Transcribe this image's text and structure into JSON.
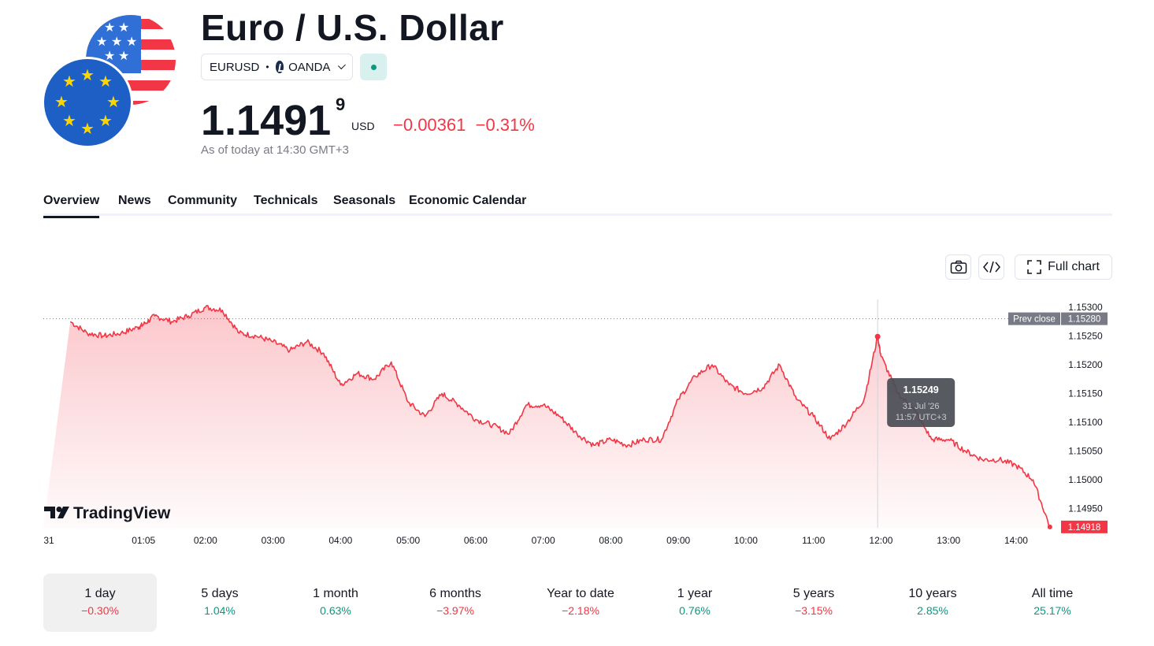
{
  "header": {
    "title": "Euro / U.S. Dollar",
    "symbol": "EURUSD",
    "separator": "•",
    "exchange": "OANDA",
    "price_main": "1.1491",
    "price_last_digit": "9",
    "currency": "USD",
    "change": "−0.00361",
    "change_pct": "−0.31%",
    "as_of": "As of today at 14:30 GMT+3",
    "colors": {
      "negative": "#f23645",
      "positive": "#089981",
      "market_status": "#089981"
    }
  },
  "tabs": [
    {
      "label": "Overview",
      "active": true
    },
    {
      "label": "News"
    },
    {
      "label": "Community"
    },
    {
      "label": "Technicals"
    },
    {
      "label": "Seasonals"
    },
    {
      "label": "Economic Calendar"
    }
  ],
  "toolbar": {
    "snapshot_icon": "camera-icon",
    "embed_icon": "code-icon",
    "full_chart_icon": "expand-icon",
    "full_chart_label": "Full chart"
  },
  "chart_data": {
    "type": "area",
    "line_color": "#f23645",
    "x_tick_labels": [
      "31",
      "01:05",
      "02:00",
      "03:00",
      "04:00",
      "05:00",
      "06:00",
      "07:00",
      "08:00",
      "09:00",
      "10:00",
      "11:00",
      "12:00",
      "13:00",
      "14:00"
    ],
    "y_tick_labels": [
      "1.15300",
      "1.15250",
      "1.15200",
      "1.15150",
      "1.15100",
      "1.15050",
      "1.15000",
      "1.14950"
    ],
    "ylim": [
      1.1491,
      1.1532
    ],
    "prev_close": {
      "label": "Prev close",
      "value": 1.1528,
      "value_label": "1.15280"
    },
    "last_price": {
      "value": 1.14918,
      "value_label": "1.14918"
    },
    "tooltip": {
      "price": "1.15249",
      "date": "31 Jul '26",
      "time": "11:57 UTC+3",
      "x": "11:57",
      "y": 1.15249
    },
    "x": [
      "00:00",
      "00:15",
      "00:30",
      "00:45",
      "01:00",
      "01:05",
      "01:15",
      "01:30",
      "01:45",
      "02:00",
      "02:15",
      "02:30",
      "02:45",
      "03:00",
      "03:15",
      "03:30",
      "03:45",
      "04:00",
      "04:15",
      "04:30",
      "04:45",
      "05:00",
      "05:15",
      "05:30",
      "05:45",
      "06:00",
      "06:15",
      "06:30",
      "06:45",
      "07:00",
      "07:15",
      "07:30",
      "07:45",
      "08:00",
      "08:15",
      "08:30",
      "08:45",
      "09:00",
      "09:15",
      "09:30",
      "09:45",
      "10:00",
      "10:15",
      "10:30",
      "10:45",
      "11:00",
      "11:15",
      "11:30",
      "11:45",
      "11:57",
      "12:00",
      "12:15",
      "12:30",
      "12:45",
      "13:00",
      "13:15",
      "13:30",
      "13:45",
      "14:00",
      "14:15",
      "14:30"
    ],
    "values": [
      1.15275,
      1.15255,
      1.1525,
      1.15255,
      1.15265,
      1.1527,
      1.15285,
      1.15275,
      1.15285,
      1.153,
      1.15295,
      1.15255,
      1.1525,
      1.1524,
      1.15225,
      1.1524,
      1.1522,
      1.15165,
      1.15185,
      1.15175,
      1.15205,
      1.15135,
      1.1511,
      1.1515,
      1.1513,
      1.15105,
      1.15095,
      1.1508,
      1.1513,
      1.1513,
      1.1511,
      1.1508,
      1.1506,
      1.1507,
      1.1506,
      1.1507,
      1.1507,
      1.1514,
      1.1518,
      1.152,
      1.15165,
      1.1515,
      1.1516,
      1.152,
      1.1514,
      1.1511,
      1.1507,
      1.151,
      1.1514,
      1.15249,
      1.15215,
      1.1515,
      1.1512,
      1.1507,
      1.1507,
      1.1505,
      1.15035,
      1.15035,
      1.15025,
      1.15,
      1.14918
    ]
  },
  "watermark": {
    "text": "TradingView",
    "logo_icon": "tradingview-logo-icon"
  },
  "ranges": [
    {
      "label": "1 day",
      "pct": "−0.30%",
      "dir": "neg",
      "active": true
    },
    {
      "label": "5 days",
      "pct": "1.04%",
      "dir": "pos"
    },
    {
      "label": "1 month",
      "pct": "0.63%",
      "dir": "pos"
    },
    {
      "label": "6 months",
      "pct": "−3.97%",
      "dir": "neg"
    },
    {
      "label": "Year to date",
      "pct": "−2.18%",
      "dir": "neg"
    },
    {
      "label": "1 year",
      "pct": "0.76%",
      "dir": "pos"
    },
    {
      "label": "5 years",
      "pct": "−3.15%",
      "dir": "neg"
    },
    {
      "label": "10 years",
      "pct": "2.85%",
      "dir": "pos"
    },
    {
      "label": "All time",
      "pct": "25.17%",
      "dir": "pos"
    }
  ]
}
